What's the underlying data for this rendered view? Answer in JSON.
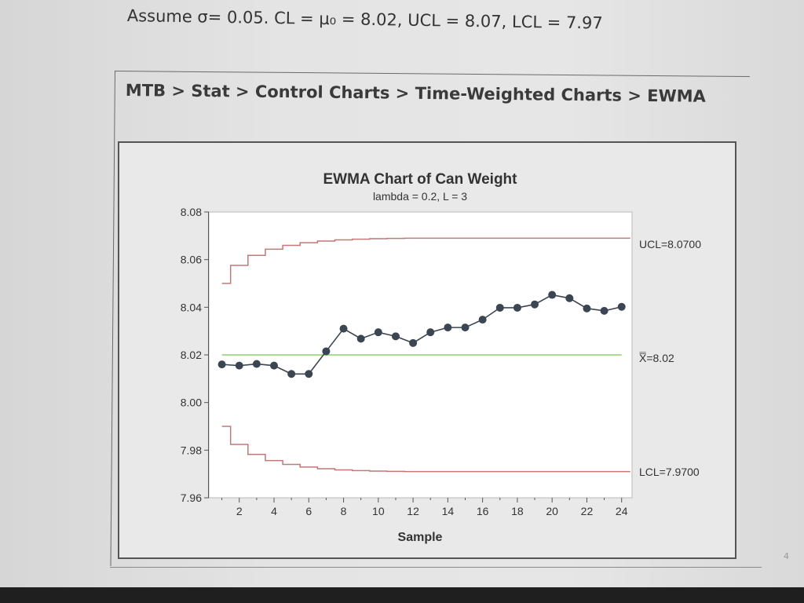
{
  "slide": {
    "assume_line": "Assume σ= 0.05.  CL = μ₀ = 8.02, UCL = 8.07, LCL = 7.97",
    "menu_path": "MTB > Stat > Control Charts > Time-Weighted Charts > EWMA",
    "page_number": "4"
  },
  "chart_data": {
    "type": "line",
    "title": "EWMA Chart of Can Weight",
    "subtitle": "lambda = 0.2, L = 3",
    "xlabel": "Sample",
    "ylabel": "",
    "xlim": [
      1,
      24
    ],
    "ylim": [
      7.96,
      8.08
    ],
    "x_ticks": [
      2,
      4,
      6,
      8,
      10,
      12,
      14,
      16,
      18,
      20,
      22,
      24
    ],
    "y_ticks": [
      7.96,
      7.98,
      8.0,
      8.02,
      8.04,
      8.06,
      8.08
    ],
    "y_tick_labels": [
      "7.96",
      "7.98",
      "8.00",
      "8.02",
      "8.04",
      "8.06",
      "8.08"
    ],
    "grid": false,
    "colors": {
      "ewma": "#3c4552",
      "limits": "#c07878",
      "center": "#8fd26c"
    },
    "series": [
      {
        "x": [
          1,
          2,
          3,
          4,
          5,
          6,
          7,
          8,
          9,
          10,
          11,
          12,
          13,
          14,
          15,
          16,
          17,
          18,
          19,
          20,
          21,
          22,
          23,
          24
        ],
        "values": [
          8.016,
          8.0155,
          8.0162,
          8.0155,
          8.012,
          8.012,
          8.0215,
          8.031,
          8.0268,
          8.0295,
          8.0278,
          8.025,
          8.0295,
          8.0315,
          8.0315,
          8.0348,
          8.0398,
          8.0398,
          8.0412,
          8.0452,
          8.0438,
          8.0395,
          8.0385,
          8.0402
        ]
      }
    ],
    "ucl": {
      "x": [
        1,
        2,
        3,
        4,
        5,
        6,
        7,
        8,
        9,
        10,
        11,
        12,
        13,
        14,
        15,
        16,
        17,
        18,
        19,
        20,
        21,
        22,
        23,
        24
      ],
      "values": [
        8.05,
        8.0576,
        8.0618,
        8.0644,
        8.066,
        8.0671,
        8.0678,
        8.0683,
        8.0686,
        8.0688,
        8.0689,
        8.069,
        8.069,
        8.069,
        8.069,
        8.069,
        8.069,
        8.069,
        8.069,
        8.069,
        8.069,
        8.069,
        8.069,
        8.069
      ]
    },
    "lcl": {
      "x": [
        1,
        2,
        3,
        4,
        5,
        6,
        7,
        8,
        9,
        10,
        11,
        12,
        13,
        14,
        15,
        16,
        17,
        18,
        19,
        20,
        21,
        22,
        23,
        24
      ],
      "values": [
        7.99,
        7.9824,
        7.9782,
        7.9756,
        7.974,
        7.9729,
        7.9722,
        7.9717,
        7.9714,
        7.9712,
        7.9711,
        7.971,
        7.971,
        7.971,
        7.971,
        7.971,
        7.971,
        7.971,
        7.971,
        7.971,
        7.971,
        7.971,
        7.971,
        7.971
      ]
    },
    "center": 8.02,
    "annotations": {
      "ucl": "UCL=8.0700",
      "center": "X̿=8.02",
      "lcl": "LCL=7.9700"
    }
  }
}
